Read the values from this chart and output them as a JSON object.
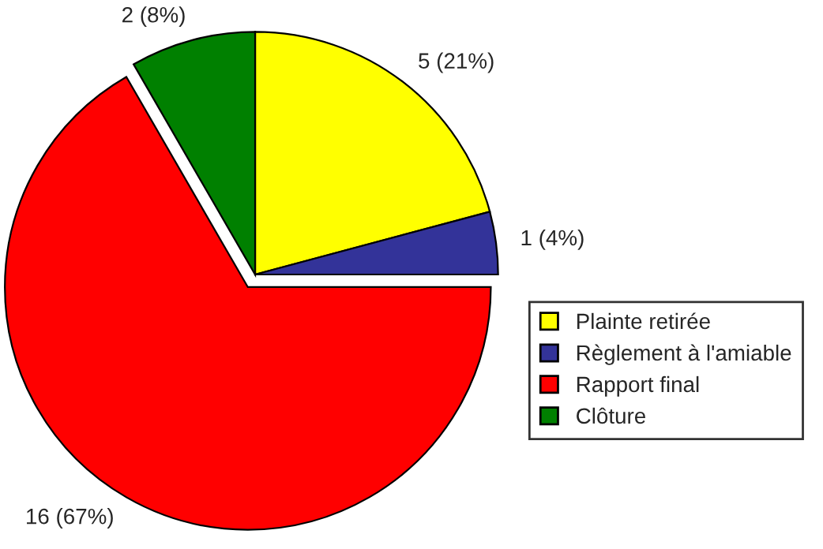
{
  "chart_data": {
    "type": "pie",
    "categories": [
      "Plainte retirée",
      "Règlement à l'amiable",
      "Rapport final",
      "Clôture"
    ],
    "values": [
      5,
      1,
      16,
      2
    ],
    "colors": [
      "#ffff00",
      "#333399",
      "#ff0000",
      "#008000"
    ],
    "value_labels": [
      "5 (21%)",
      "1 (4%)",
      "16 (67%)",
      "2 (8%)"
    ],
    "legend": "right"
  }
}
